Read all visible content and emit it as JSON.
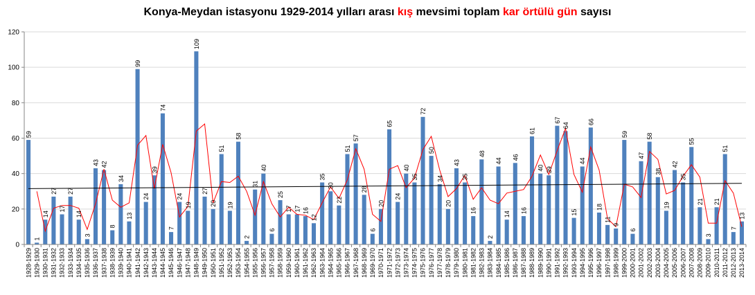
{
  "title": {
    "part1": "Konya-Meydan istasyonu 1929-2014  yılları arası ",
    "part2": "kış",
    "part3": " mevsimi toplam ",
    "part4": "kar örtülü gün",
    "part5": " sayısı"
  },
  "colors": {
    "bar": "#4f81bd",
    "moving_avg": "#ff0000",
    "trend": "#000000",
    "grid": "#d9d9d9",
    "axis": "#868686"
  },
  "chart_data": {
    "type": "bar",
    "title": "Konya-Meydan istasyonu 1929-2014  yılları arası kış mevsimi toplam kar örtülü gün sayısı",
    "xlabel": "",
    "ylabel": "",
    "ylim": [
      0,
      120
    ],
    "yticks": [
      0,
      20,
      40,
      60,
      80,
      100,
      120
    ],
    "grid": true,
    "categories": [
      "1928-1929",
      "1929-1930",
      "1930-1931",
      "1931-1932",
      "1932-1933",
      "1933-1934",
      "1934-1935",
      "1935-1936",
      "1936-1937",
      "1937-1938",
      "1938-1939",
      "1939-1940",
      "1940-1941",
      "1941-1942",
      "1942-1943",
      "1943-1944",
      "1944-1945",
      "1945-1946",
      "1946-1947",
      "1947-1948",
      "1948-1949",
      "1949-1950",
      "1950-1951",
      "1951-1952",
      "1952-1953",
      "1953-1954",
      "1954-1955",
      "1955-1956",
      "1956-1957",
      "1957-1958",
      "1958-1959",
      "1959-1960",
      "1960-1961",
      "1961-1962",
      "1962-1963",
      "1963-1964",
      "1964-1965",
      "1965-1966",
      "1966-1967",
      "1967-1968",
      "1968-1969",
      "1969-1970",
      "1970-1971",
      "1971-1972",
      "1972-1973",
      "1973-1974",
      "1974-1975",
      "1975-1976",
      "1976-1977",
      "1977-1978",
      "1978-1979",
      "1979-1980",
      "1980-1981",
      "1981-1982",
      "1982-1983",
      "1983-1984",
      "1984-1985",
      "1985-1986",
      "1986-1987",
      "1987-1988",
      "1988-1989",
      "1989-1990",
      "1990-1991",
      "1991-1992",
      "1992-1993",
      "1993-1994",
      "1994-1995",
      "1995-1996",
      "1996-1997",
      "1997-1998",
      "1998-1999",
      "1999-2000",
      "2000-2001",
      "2001-2002",
      "2002-2003",
      "2003-2004",
      "2004-2005",
      "2005-2006",
      "2006-2007",
      "2007-2008",
      "2008-2009",
      "2009-2010",
      "2010-2011",
      "2011-2012",
      "2012-2013",
      "2013-2014"
    ],
    "values": [
      59,
      1,
      14,
      27,
      17,
      27,
      14,
      3,
      43,
      42,
      8,
      34,
      13,
      99,
      24,
      39,
      74,
      7,
      24,
      19,
      109,
      27,
      20,
      51,
      19,
      58,
      2,
      31,
      40,
      6,
      25,
      17,
      17,
      16,
      12,
      35,
      30,
      22,
      51,
      57,
      28,
      6,
      20,
      65,
      24,
      40,
      35,
      72,
      50,
      34,
      20,
      43,
      35,
      16,
      48,
      2,
      44,
      14,
      46,
      16,
      61,
      40,
      39,
      67,
      64,
      15,
      44,
      66,
      18,
      11,
      9,
      59,
      6,
      47,
      58,
      38,
      19,
      42,
      35,
      55,
      21,
      3,
      21,
      51,
      7,
      13
    ],
    "series": [
      {
        "kind": "bar",
        "values": [
          59,
          1,
          14,
          27,
          17,
          27,
          14,
          3,
          43,
          42,
          8,
          34,
          13,
          99,
          24,
          39,
          74,
          7,
          24,
          19,
          109,
          27,
          20,
          51,
          19,
          58,
          2,
          31,
          40,
          6,
          25,
          17,
          17,
          16,
          12,
          35,
          30,
          22,
          51,
          57,
          28,
          6,
          20,
          65,
          24,
          40,
          35,
          72,
          50,
          34,
          20,
          43,
          35,
          16,
          48,
          2,
          44,
          14,
          46,
          16,
          61,
          40,
          39,
          67,
          64,
          15,
          44,
          66,
          18,
          11,
          9,
          59,
          6,
          47,
          58,
          38,
          19,
          42,
          35,
          55,
          21,
          3,
          21,
          51,
          7,
          13
        ]
      },
      {
        "kind": "moving_average",
        "period": 2
      },
      {
        "kind": "linear_trend",
        "start": 31.5,
        "end": 34.5
      }
    ]
  }
}
